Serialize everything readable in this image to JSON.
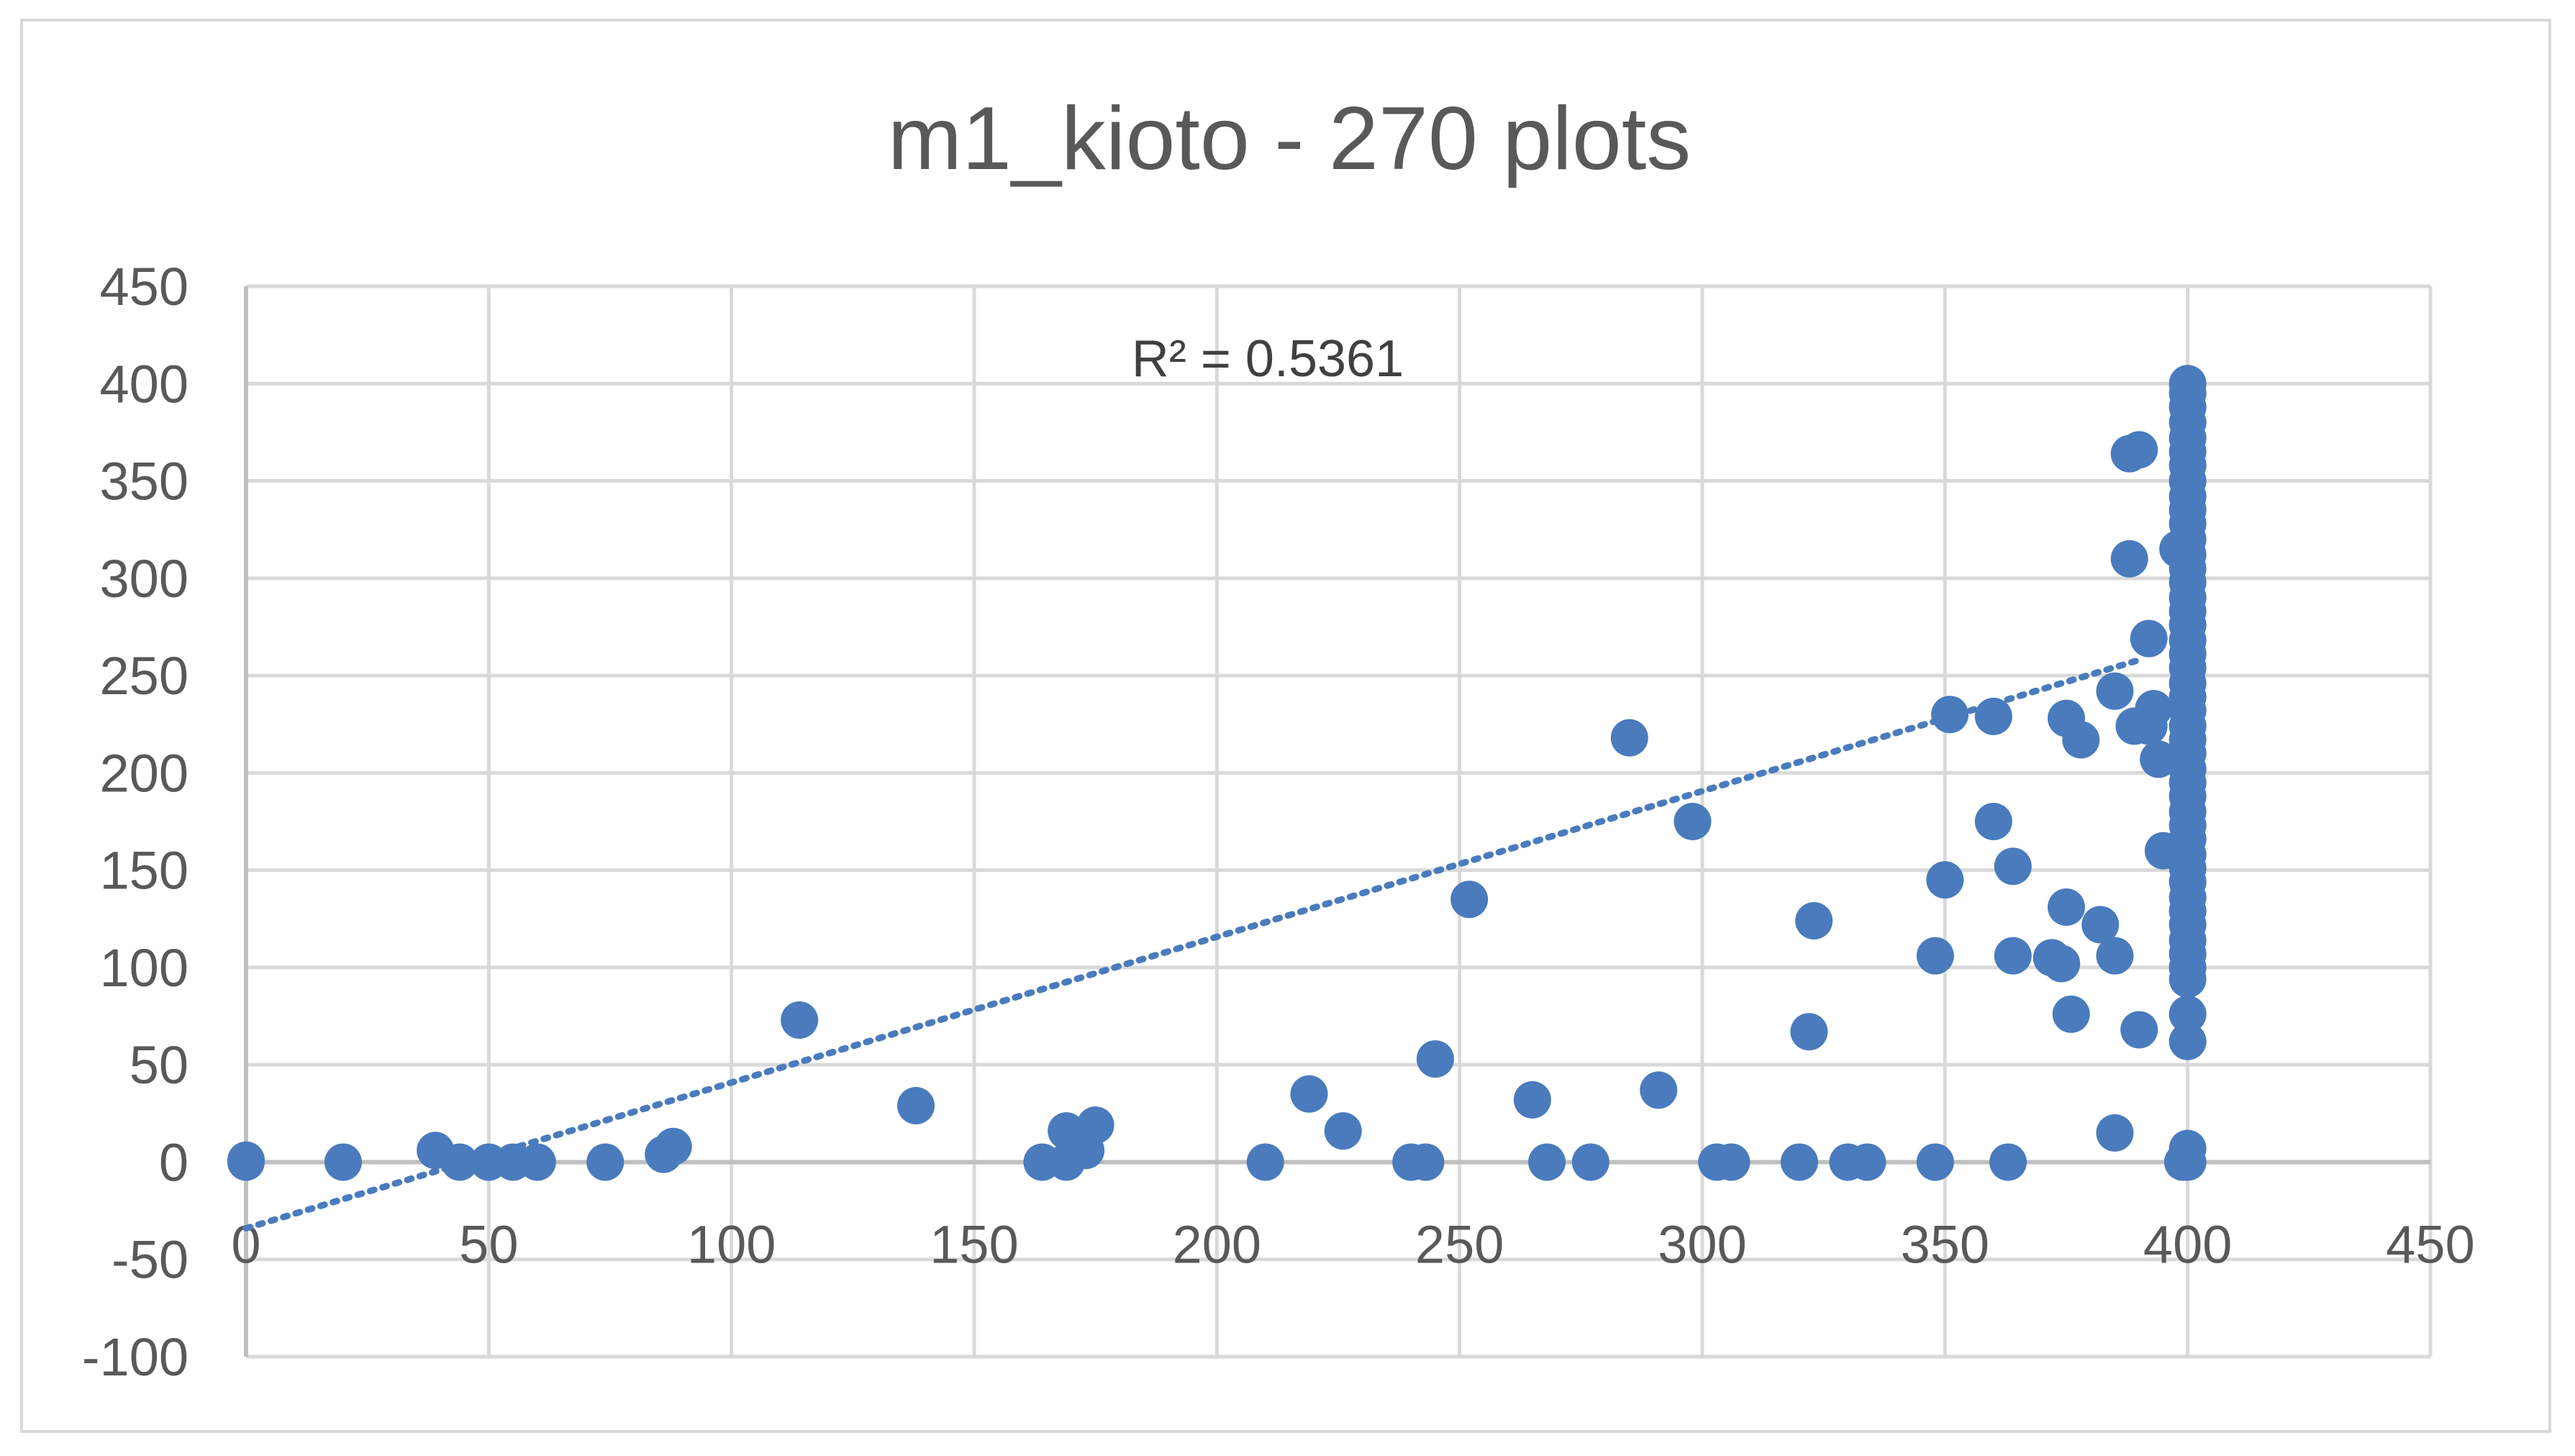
{
  "chart_data": {
    "type": "scatter",
    "title": "m1_kioto - 270 plots",
    "xlabel": "",
    "ylabel": "",
    "xlim": [
      0,
      450
    ],
    "ylim": [
      -100,
      450
    ],
    "x_ticks": [
      0,
      50,
      100,
      150,
      200,
      250,
      300,
      350,
      400,
      450
    ],
    "y_ticks": [
      -100,
      -50,
      0,
      50,
      100,
      150,
      200,
      250,
      300,
      350,
      400,
      450
    ],
    "grid": true,
    "colors": {
      "marker": "#4a7bbd",
      "trendline": "#4a7bbd",
      "grid": "#d9d9d9"
    },
    "trendline": {
      "type": "linear",
      "style": "dotted",
      "from": [
        0,
        -34
      ],
      "to": [
        390,
        258
      ],
      "r_squared_label": "R² = 0.5361"
    },
    "series": [
      {
        "name": "m1_kioto",
        "points": [
          [
            0,
            0
          ],
          [
            0,
            1
          ],
          [
            20,
            0
          ],
          [
            39,
            6
          ],
          [
            44,
            0
          ],
          [
            50,
            0
          ],
          [
            55,
            0
          ],
          [
            60,
            0
          ],
          [
            74,
            0
          ],
          [
            86,
            4
          ],
          [
            88,
            8
          ],
          [
            114,
            73
          ],
          [
            138,
            29
          ],
          [
            164,
            0
          ],
          [
            169,
            0
          ],
          [
            169,
            16
          ],
          [
            173,
            6
          ],
          [
            175,
            19
          ],
          [
            210,
            0
          ],
          [
            219,
            35
          ],
          [
            226,
            16
          ],
          [
            240,
            0
          ],
          [
            243,
            0
          ],
          [
            245,
            53
          ],
          [
            252,
            135
          ],
          [
            265,
            32
          ],
          [
            268,
            0
          ],
          [
            277,
            0
          ],
          [
            285,
            218
          ],
          [
            291,
            37
          ],
          [
            298,
            175
          ],
          [
            303,
            0
          ],
          [
            306,
            0
          ],
          [
            320,
            0
          ],
          [
            322,
            67
          ],
          [
            323,
            124
          ],
          [
            330,
            0
          ],
          [
            334,
            0
          ],
          [
            348,
            106
          ],
          [
            348,
            0
          ],
          [
            350,
            145
          ],
          [
            351,
            230
          ],
          [
            360,
            229
          ],
          [
            360,
            175
          ],
          [
            363,
            0
          ],
          [
            364,
            152
          ],
          [
            364,
            106
          ],
          [
            372,
            105
          ],
          [
            374,
            102
          ],
          [
            375,
            228
          ],
          [
            375,
            131
          ],
          [
            376,
            76
          ],
          [
            378,
            217
          ],
          [
            382,
            122
          ],
          [
            385,
            242
          ],
          [
            385,
            106
          ],
          [
            385,
            15
          ],
          [
            388,
            364
          ],
          [
            388,
            310
          ],
          [
            389,
            224
          ],
          [
            390,
            366
          ],
          [
            390,
            68
          ],
          [
            392,
            269
          ],
          [
            392,
            224
          ],
          [
            393,
            233
          ],
          [
            394,
            207
          ],
          [
            395,
            160
          ],
          [
            398,
            315
          ],
          [
            399,
            0
          ],
          [
            400,
            400
          ],
          [
            400,
            395
          ],
          [
            400,
            388
          ],
          [
            400,
            380
          ],
          [
            400,
            372
          ],
          [
            400,
            365
          ],
          [
            400,
            358
          ],
          [
            400,
            350
          ],
          [
            400,
            342
          ],
          [
            400,
            335
          ],
          [
            400,
            328
          ],
          [
            400,
            320
          ],
          [
            400,
            312
          ],
          [
            400,
            305
          ],
          [
            400,
            298
          ],
          [
            400,
            290
          ],
          [
            400,
            283
          ],
          [
            400,
            276
          ],
          [
            400,
            268
          ],
          [
            400,
            261
          ],
          [
            400,
            254
          ],
          [
            400,
            246
          ],
          [
            400,
            239
          ],
          [
            400,
            232
          ],
          [
            400,
            224
          ],
          [
            400,
            217
          ],
          [
            400,
            210
          ],
          [
            400,
            202
          ],
          [
            400,
            195
          ],
          [
            400,
            188
          ],
          [
            400,
            180
          ],
          [
            400,
            173
          ],
          [
            400,
            166
          ],
          [
            400,
            158
          ],
          [
            400,
            151
          ],
          [
            400,
            144
          ],
          [
            400,
            136
          ],
          [
            400,
            129
          ],
          [
            400,
            122
          ],
          [
            400,
            114
          ],
          [
            400,
            107
          ],
          [
            400,
            100
          ],
          [
            400,
            94
          ],
          [
            400,
            76
          ],
          [
            400,
            62
          ],
          [
            400,
            7
          ],
          [
            400,
            0
          ]
        ]
      }
    ]
  }
}
